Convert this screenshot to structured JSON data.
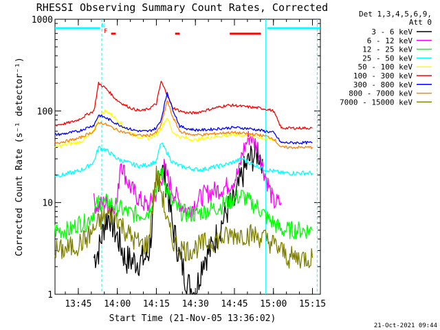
{
  "chart_data": {
    "type": "line",
    "title": "RHESSI Observing Summary Count Rates, Corrected",
    "xlabel": "Start Time (21-Nov-05 13:36:02)",
    "ylabel": "Corrected Count Rate (s⁻¹ detector⁻¹)",
    "y_scale": "log",
    "ylim": [
      1,
      1000
    ],
    "y_ticks": [
      {
        "value": 1,
        "label": "1"
      },
      {
        "value": 10,
        "label": "10"
      },
      {
        "value": 100,
        "label": "100"
      },
      {
        "value": 1000,
        "label": "1000"
      }
    ],
    "x_ticks": [
      {
        "value": 13.75,
        "label": "13:45"
      },
      {
        "value": 14.0,
        "label": "14:00"
      },
      {
        "value": 14.25,
        "label": "14:15"
      },
      {
        "value": 14.5,
        "label": "14:30"
      },
      {
        "value": 14.75,
        "label": "14:45"
      },
      {
        "value": 15.0,
        "label": "15:00"
      },
      {
        "value": 15.25,
        "label": "15:15"
      }
    ],
    "xlim": [
      13.6006,
      15.3006
    ],
    "legend_header": [
      "Det 1,3,4,5,6,9,",
      "Att 0"
    ],
    "legend_position": "right",
    "series": [
      {
        "name": "3 - 6 keV",
        "color": "#000000",
        "x": [
          13.85,
          13.88,
          13.92,
          13.95,
          13.98,
          14.02,
          14.05,
          14.1,
          14.15,
          14.18,
          14.2,
          14.22,
          14.25,
          14.28,
          14.32,
          14.35,
          14.4,
          14.45,
          14.5,
          14.55,
          14.6,
          14.65,
          14.7,
          14.72,
          14.75,
          14.8,
          14.85,
          14.9,
          14.93
        ],
        "y": [
          2.5,
          3,
          6,
          7.5,
          5,
          3.5,
          2.4,
          2.3,
          2.3,
          2.5,
          2.8,
          5,
          15,
          25,
          15,
          6,
          2.5,
          1.3,
          1,
          2.5,
          3,
          5,
          8,
          9,
          10,
          20,
          30,
          35,
          30
        ]
      },
      {
        "name": "6 - 12 keV",
        "color": "#ff00ff",
        "x": [
          13.85,
          13.88,
          13.92,
          13.95,
          14.0,
          14.02,
          14.05,
          14.08,
          14.12,
          14.16,
          14.2,
          14.24,
          14.27,
          14.3,
          14.35,
          14.4,
          14.45,
          14.5,
          14.55,
          14.6,
          14.65,
          14.7,
          14.75,
          14.78,
          14.8,
          14.85,
          14.9,
          14.93,
          14.97,
          15.0,
          15.05
        ],
        "y": [
          10,
          9,
          10,
          9,
          10,
          30,
          20,
          15,
          12,
          10,
          9,
          12,
          15,
          24,
          14,
          10,
          8,
          10,
          12,
          13,
          14,
          15,
          18,
          22,
          35,
          55,
          40,
          25,
          15,
          10,
          10
        ]
      },
      {
        "name": "12 - 25 keV",
        "color": "#00ff00",
        "x": [
          13.6,
          13.65,
          13.7,
          13.75,
          13.8,
          13.85,
          13.88,
          13.92,
          13.95,
          14.0,
          14.05,
          14.1,
          14.15,
          14.2,
          14.25,
          14.28,
          14.32,
          14.35,
          14.4,
          14.45,
          14.5,
          14.55,
          14.6,
          14.65,
          14.7,
          14.75,
          14.8,
          14.85,
          14.9,
          14.95,
          15.0,
          15.05,
          15.1,
          15.15,
          15.2,
          15.25
        ],
        "y": [
          5,
          5,
          5,
          6,
          6,
          8,
          10,
          10,
          10,
          9,
          8,
          7.5,
          7.5,
          8,
          15,
          22,
          14,
          10,
          8,
          7.5,
          7.5,
          8,
          8.5,
          9,
          10,
          11,
          12,
          10,
          9,
          7,
          6,
          5,
          5,
          5,
          5,
          5
        ]
      },
      {
        "name": "25 - 50 keV",
        "color": "#00ffff",
        "x": [
          13.6,
          13.65,
          13.7,
          13.75,
          13.8,
          13.85,
          13.88,
          13.92,
          13.95,
          13.98,
          14.0,
          14.05,
          14.1,
          14.15,
          14.2,
          14.25,
          14.28,
          14.32,
          14.35,
          14.4,
          14.45,
          14.5,
          14.55,
          14.6,
          14.65,
          14.7,
          14.75,
          14.8,
          14.85,
          14.9,
          14.95,
          15.0,
          15.05,
          15.1,
          15.15,
          15.2,
          15.25
        ],
        "y": [
          20,
          20,
          21,
          22,
          24,
          28,
          40,
          38,
          35,
          32,
          30,
          28,
          26,
          25,
          26,
          28,
          45,
          35,
          28,
          25,
          24,
          23,
          23,
          24,
          25,
          26,
          28,
          30,
          27,
          25,
          23,
          22,
          21,
          21,
          21,
          21,
          21
        ]
      },
      {
        "name": "50 - 100 keV",
        "color": "#ffff00",
        "x": [
          13.6,
          13.65,
          13.7,
          13.75,
          13.8,
          13.85,
          13.88,
          13.92,
          13.95,
          14.0,
          14.05,
          14.1,
          14.15,
          14.2,
          14.25,
          14.28,
          14.32,
          14.35,
          14.4,
          14.45,
          14.5,
          14.55,
          14.6,
          14.65,
          14.7,
          14.75,
          14.8,
          14.85,
          14.9,
          14.95,
          15.0
        ],
        "y": [
          40,
          42,
          44,
          45,
          50,
          60,
          85,
          100,
          95,
          80,
          65,
          55,
          52,
          50,
          55,
          65,
          85,
          60,
          52,
          50,
          48,
          50,
          52,
          53,
          54,
          55,
          54,
          53,
          52,
          50,
          48
        ]
      },
      {
        "name": "100 - 300 keV",
        "color": "#ff0000",
        "x": [
          13.6,
          13.65,
          13.7,
          13.75,
          13.8,
          13.85,
          13.88,
          13.92,
          13.95,
          13.98,
          14.0,
          14.05,
          14.1,
          14.15,
          14.2,
          14.25,
          14.28,
          14.32,
          14.35,
          14.4,
          14.45,
          14.5,
          14.55,
          14.6,
          14.65,
          14.7,
          14.75,
          14.8,
          14.85,
          14.9,
          14.95,
          15.0,
          15.05,
          15.1,
          15.15,
          15.2,
          15.25
        ],
        "y": [
          70,
          72,
          75,
          80,
          90,
          100,
          200,
          180,
          160,
          140,
          130,
          115,
          105,
          100,
          105,
          120,
          210,
          150,
          110,
          100,
          95,
          95,
          100,
          105,
          110,
          115,
          115,
          112,
          110,
          108,
          105,
          100,
          65,
          65,
          65,
          65,
          65
        ]
      },
      {
        "name": "300 - 800 keV",
        "color": "#0000ff",
        "x": [
          13.6,
          13.65,
          13.7,
          13.75,
          13.8,
          13.85,
          13.88,
          13.92,
          13.95,
          14.0,
          14.05,
          14.1,
          14.15,
          14.2,
          14.25,
          14.28,
          14.32,
          14.35,
          14.4,
          14.45,
          14.5,
          14.55,
          14.6,
          14.65,
          14.7,
          14.75,
          14.8,
          14.85,
          14.9,
          14.95,
          15.0,
          15.05,
          15.1,
          15.15,
          15.2,
          15.25
        ],
        "y": [
          55,
          56,
          58,
          60,
          65,
          70,
          90,
          85,
          80,
          72,
          66,
          62,
          60,
          60,
          65,
          80,
          160,
          110,
          68,
          64,
          62,
          62,
          63,
          64,
          65,
          66,
          65,
          64,
          62,
          60,
          58,
          45,
          45,
          45,
          45,
          45
        ]
      },
      {
        "name": "800 - 7000 keV",
        "color": "#ff8000",
        "x": [
          13.6,
          13.65,
          13.7,
          13.75,
          13.8,
          13.85,
          13.88,
          13.92,
          13.95,
          14.0,
          14.05,
          14.1,
          14.15,
          14.2,
          14.25,
          14.28,
          14.32,
          14.35,
          14.4,
          14.45,
          14.5,
          14.55,
          14.6,
          14.65,
          14.7,
          14.75,
          14.8,
          14.85,
          14.9,
          14.95,
          15.0,
          15.05,
          15.1,
          15.15,
          15.2,
          15.25
        ],
        "y": [
          45,
          46,
          48,
          50,
          55,
          60,
          75,
          72,
          68,
          62,
          58,
          55,
          54,
          54,
          58,
          70,
          130,
          90,
          60,
          56,
          55,
          55,
          56,
          57,
          58,
          58,
          57,
          56,
          55,
          53,
          50,
          40,
          40,
          40,
          40,
          40
        ]
      },
      {
        "name": "7000 - 15000 keV",
        "color": "#808000",
        "x": [
          13.6,
          13.65,
          13.7,
          13.75,
          13.8,
          13.85,
          13.88,
          13.92,
          13.95,
          14.0,
          14.02,
          14.05,
          14.1,
          14.15,
          14.2,
          14.22,
          14.25,
          14.28,
          14.32,
          14.35,
          14.4,
          14.45,
          14.5,
          14.55,
          14.6,
          14.65,
          14.7,
          14.75,
          14.8,
          14.85,
          14.9,
          14.95,
          15.0,
          15.05,
          15.1,
          15.15,
          15.2,
          15.25
        ],
        "y": [
          3,
          3,
          3.2,
          3.5,
          4,
          5,
          6,
          7,
          7.5,
          7,
          6,
          5,
          4,
          3.5,
          3.5,
          8,
          20,
          14,
          6,
          4,
          3.2,
          3,
          3.2,
          3.5,
          3.8,
          4,
          4.2,
          4.5,
          4.5,
          4.5,
          4.3,
          4,
          3.5,
          3,
          2.5,
          2.5,
          2.5,
          2.5
        ]
      }
    ],
    "annotations": [
      {
        "text": "N",
        "color": "#00ffff",
        "x": 13.91,
        "y_note": "top"
      },
      {
        "text": "F",
        "color": "#ff0000",
        "x": 13.925,
        "y_note": "top"
      }
    ],
    "flag_bars": [
      {
        "color": "#00ffff",
        "x_start": 13.6,
        "x_end": 13.89
      },
      {
        "color": "#00ffff",
        "x_start": 14.96,
        "x_end": 15.3
      },
      {
        "color": "#ff0000",
        "x_start": 13.96,
        "x_end": 13.99
      },
      {
        "color": "#ff0000",
        "x_start": 14.37,
        "x_end": 14.4
      },
      {
        "color": "#ff0000",
        "x_start": 14.72,
        "x_end": 14.92
      }
    ],
    "vlines": [
      {
        "color": "#00ffff",
        "x": 13.9,
        "dashed": true
      },
      {
        "color": "#00ffff",
        "x": 14.95,
        "dashed": false
      },
      {
        "color": "#00ffff",
        "x": 15.28,
        "dashed": true
      }
    ]
  },
  "footer_timestamp": "21-Oct-2021 09:44"
}
